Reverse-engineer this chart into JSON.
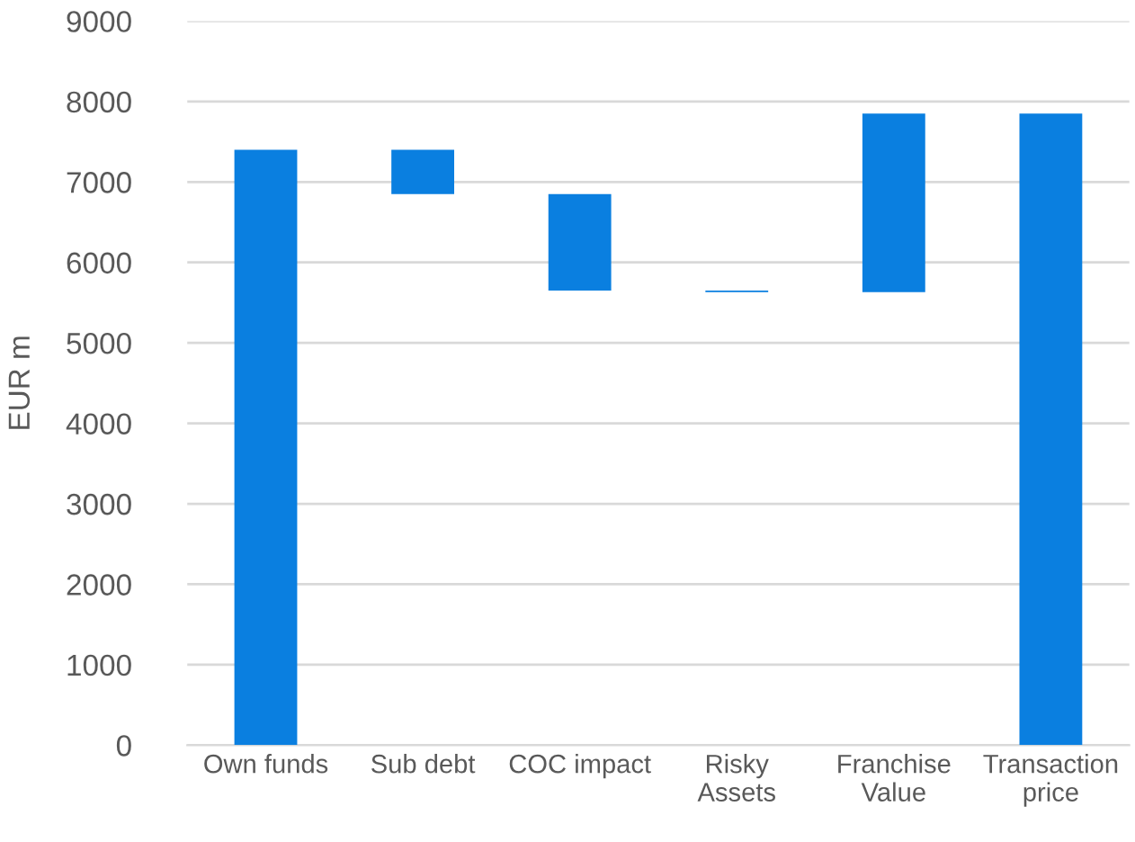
{
  "chart_data": {
    "type": "bar",
    "ylabel": "EUR m",
    "categories": [
      "Own funds",
      "Sub debt",
      "COC impact",
      "Risky\nAssets",
      "Franchise\nValue",
      "Transaction\nprice"
    ],
    "values": [
      7400,
      550,
      1200,
      20,
      2220,
      7850
    ],
    "base": [
      0,
      6850,
      5650,
      5630,
      5630,
      0
    ],
    "color": "#0a7fe0",
    "ylim": [
      0,
      9000
    ],
    "yticks": [
      0,
      1000,
      2000,
      3000,
      4000,
      5000,
      6000,
      7000,
      8000,
      9000
    ],
    "grid": "y",
    "legend": false
  }
}
